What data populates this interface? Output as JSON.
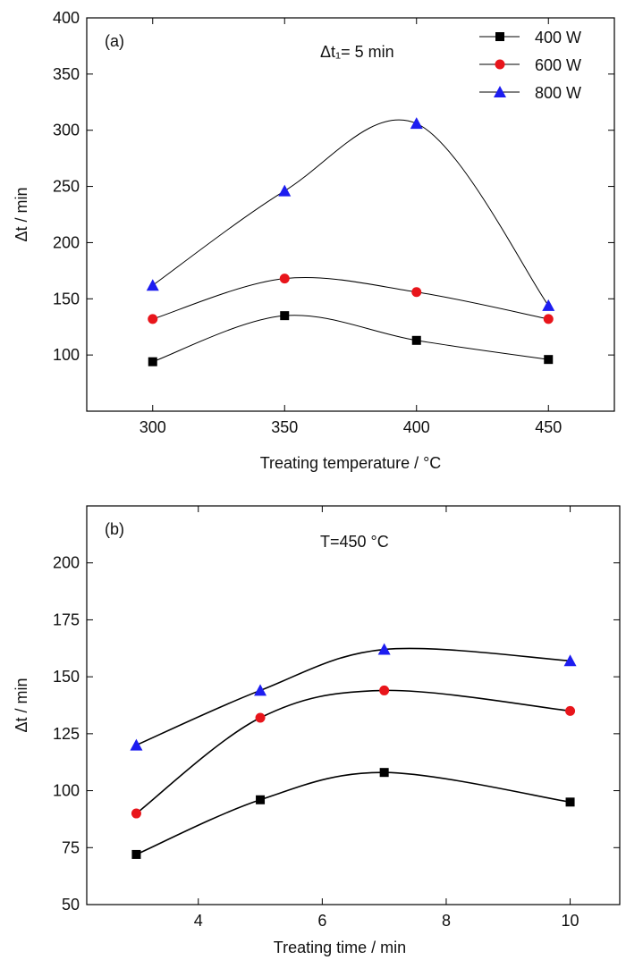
{
  "chart_data": [
    {
      "type": "line",
      "panel_label": "(a)",
      "annotation": "Δt₁= 5 min",
      "xlabel": "Treating temperature / °C",
      "ylabel": "Δt / min",
      "x": [
        300,
        350,
        400,
        450
      ],
      "xlim": [
        275,
        475
      ],
      "ylim": [
        50,
        400
      ],
      "x_ticks": [
        300,
        350,
        400,
        450
      ],
      "y_ticks": [
        100,
        150,
        200,
        250,
        300,
        350,
        400
      ],
      "series": [
        {
          "name": "400 W",
          "values": [
            94,
            135,
            113,
            96
          ],
          "marker": "square",
          "color": "#000000"
        },
        {
          "name": "600 W",
          "values": [
            132,
            168,
            156,
            132
          ],
          "marker": "circle",
          "color": "#e8151b"
        },
        {
          "name": "800 W",
          "values": [
            162,
            246,
            306,
            144
          ],
          "marker": "triangle",
          "color": "#1d1df0"
        }
      ],
      "legend_position": "top-right",
      "grid": false
    },
    {
      "type": "line",
      "panel_label": "(b)",
      "annotation": "T=450 °C",
      "xlabel": "Treating time / min",
      "ylabel": "Δt / min",
      "x": [
        3,
        5,
        7,
        10
      ],
      "xlim": [
        2.2,
        10.8
      ],
      "ylim": [
        50,
        225
      ],
      "x_ticks": [
        4,
        6,
        8,
        10
      ],
      "y_ticks": [
        50,
        75,
        100,
        125,
        150,
        175,
        200
      ],
      "series": [
        {
          "name": "400 W",
          "values": [
            72,
            96,
            108,
            95
          ],
          "marker": "square",
          "color": "#000000"
        },
        {
          "name": "600 W",
          "values": [
            90,
            132,
            144,
            135
          ],
          "marker": "circle",
          "color": "#e8151b"
        },
        {
          "name": "800 W",
          "values": [
            120,
            144,
            162,
            157
          ],
          "marker": "triangle",
          "color": "#1d1df0"
        }
      ],
      "grid": false
    }
  ]
}
